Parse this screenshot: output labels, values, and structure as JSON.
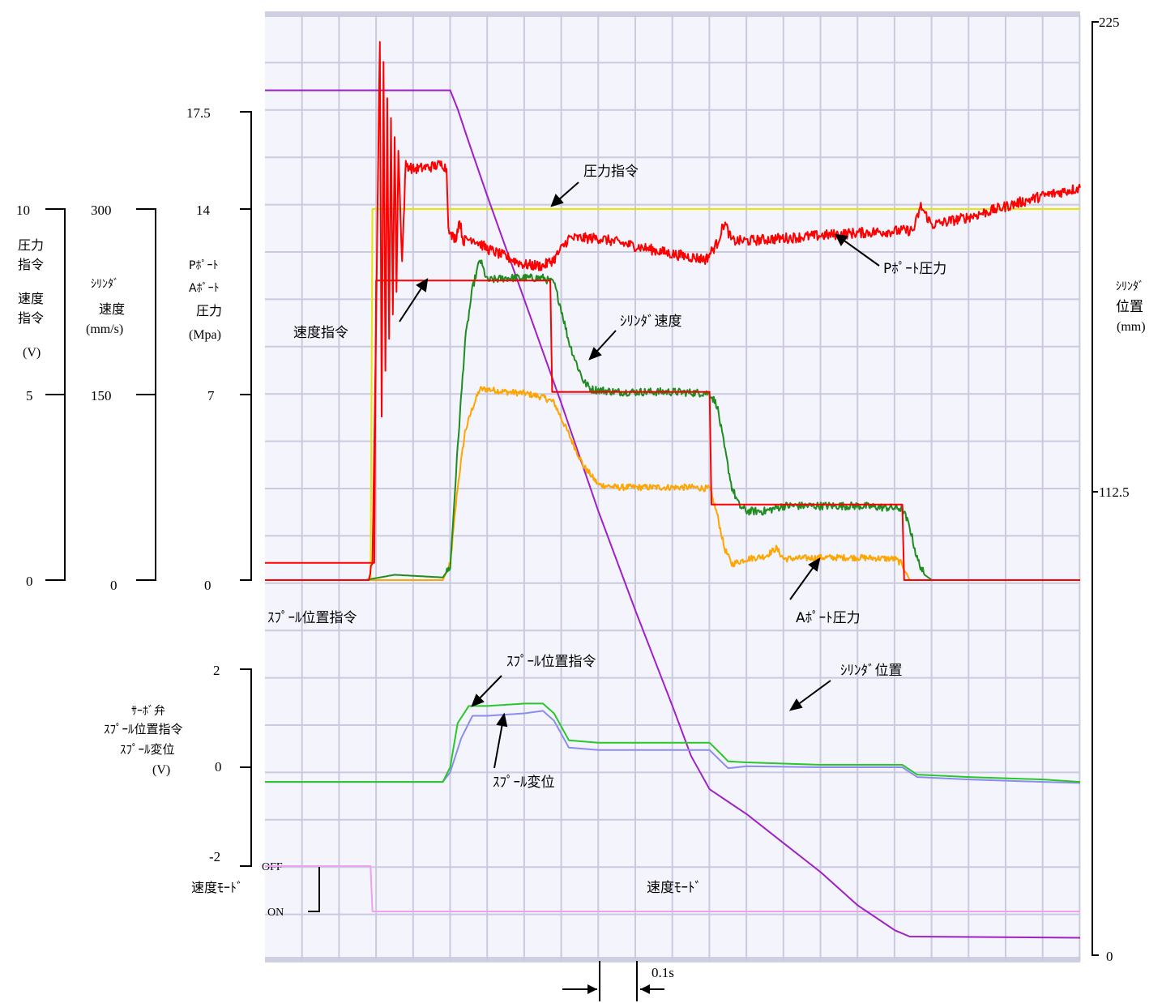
{
  "chart_data": {
    "type": "line",
    "time_scale_label": "0.1s",
    "right_axis": {
      "title_lines": [
        "ｼﾘﾝﾀﾞ",
        "位置",
        "(mm)"
      ],
      "ticks": [
        {
          "value": 225,
          "label": "225"
        },
        {
          "value": 112.5,
          "label": "112.5"
        },
        {
          "value": 0,
          "label": "0"
        }
      ]
    },
    "left_axes": [
      {
        "id": "cmd",
        "title_lines": [
          "圧力",
          "指令",
          "速度",
          "指令",
          "(V)"
        ],
        "ticks": [
          {
            "value": 10,
            "label": "10"
          },
          {
            "value": 5,
            "label": "5"
          },
          {
            "value": 0,
            "label": "0"
          }
        ]
      },
      {
        "id": "speed",
        "title_lines": [
          "ｼﾘﾝﾀﾞ",
          "速度",
          "(mm/s)"
        ],
        "ticks": [
          {
            "value": 300,
            "label": "300"
          },
          {
            "value": 150,
            "label": "150"
          },
          {
            "value": 0,
            "label": "0"
          }
        ]
      },
      {
        "id": "pressure",
        "title_lines": [
          "Pﾎﾟｰﾄ",
          "Aﾎﾟｰﾄ",
          "圧力",
          "(Mpa)"
        ],
        "ticks": [
          {
            "value": 17.5,
            "label": "17.5"
          },
          {
            "value": 14,
            "label": "14"
          },
          {
            "value": 7,
            "label": "7"
          },
          {
            "value": 0,
            "label": "0"
          }
        ]
      },
      {
        "id": "spool",
        "title_lines": [
          "ｻｰﾎﾞ弁",
          "ｽﾌﾟｰﾙ位置指令",
          "ｽﾌﾟｰﾙ変位",
          "(V)"
        ],
        "ticks": [
          {
            "value": 2,
            "label": "2"
          },
          {
            "value": 0,
            "label": "0"
          },
          {
            "value": -2,
            "label": "-2"
          }
        ]
      },
      {
        "id": "mode",
        "title_lines": [
          "速度ﾓｰﾄﾞ"
        ],
        "ticks": [
          {
            "value": 1,
            "label": "OFF"
          },
          {
            "value": 0,
            "label": "ON"
          }
        ]
      }
    ],
    "section_label": "ｽﾌﾟｰﾙ位置指令",
    "mode_center_label": "速度ﾓｰﾄﾞ",
    "series": [
      {
        "name": "圧力指令",
        "axis": "pressure",
        "color": "#e6e600",
        "noise": 0,
        "points": [
          [
            0,
            0
          ],
          [
            0.285,
            0
          ],
          [
            0.29,
            14
          ],
          [
            2.2,
            14
          ]
        ]
      },
      {
        "name": "速度指令",
        "axis": "pressure",
        "color": "#ff0000",
        "noise": 0,
        "points": [
          [
            0,
            0.65
          ],
          [
            0.295,
            0.65
          ],
          [
            0.3,
            11.3
          ],
          [
            0.77,
            11.3
          ],
          [
            0.775,
            7.1
          ],
          [
            1.2,
            7.1
          ],
          [
            1.205,
            2.85
          ],
          [
            1.72,
            2.85
          ],
          [
            1.725,
            0
          ],
          [
            2.2,
            0
          ]
        ]
      },
      {
        "name": "Pﾎﾟｰﾄ圧力",
        "axis": "pressure",
        "color": "#ff0000",
        "noise": 0.2,
        "points": [
          [
            0,
            0
          ],
          [
            0.28,
            0
          ],
          [
            0.29,
            0.6
          ],
          [
            0.3,
            10
          ],
          [
            0.31,
            20.5
          ],
          [
            0.315,
            6
          ],
          [
            0.32,
            19.5
          ],
          [
            0.325,
            8
          ],
          [
            0.33,
            18
          ],
          [
            0.335,
            9
          ],
          [
            0.34,
            17.5
          ],
          [
            0.345,
            10
          ],
          [
            0.35,
            16.8
          ],
          [
            0.355,
            11
          ],
          [
            0.36,
            16.2
          ],
          [
            0.37,
            12
          ],
          [
            0.38,
            15.7
          ],
          [
            0.4,
            15.5
          ],
          [
            0.45,
            15.6
          ],
          [
            0.48,
            15.7
          ],
          [
            0.49,
            15.5
          ],
          [
            0.495,
            13.5
          ],
          [
            0.5,
            13
          ],
          [
            0.515,
            12.9
          ],
          [
            0.525,
            13.6
          ],
          [
            0.535,
            12.8
          ],
          [
            0.56,
            12.9
          ],
          [
            0.6,
            12.5
          ],
          [
            0.65,
            12.2
          ],
          [
            0.7,
            11.9
          ],
          [
            0.75,
            11.85
          ],
          [
            0.78,
            12.1
          ],
          [
            0.82,
            12.9
          ],
          [
            0.9,
            12.9
          ],
          [
            1.0,
            12.6
          ],
          [
            1.1,
            12.3
          ],
          [
            1.19,
            12.1
          ],
          [
            1.22,
            12.7
          ],
          [
            1.24,
            13.5
          ],
          [
            1.26,
            12.8
          ],
          [
            1.3,
            12.8
          ],
          [
            1.4,
            12.9
          ],
          [
            1.5,
            13
          ],
          [
            1.6,
            13.1
          ],
          [
            1.75,
            13.2
          ],
          [
            1.77,
            14.1
          ],
          [
            1.8,
            13.4
          ],
          [
            1.9,
            13.7
          ],
          [
            2.0,
            14.1
          ],
          [
            2.1,
            14.5
          ],
          [
            2.2,
            14.8
          ]
        ]
      },
      {
        "name": "ｼﾘﾝﾀﾞ速度",
        "axis": "pressure",
        "color": "#1e8c1e",
        "noise": 0.15,
        "points": [
          [
            0,
            0
          ],
          [
            0.27,
            0
          ],
          [
            0.35,
            0.2
          ],
          [
            0.48,
            0.1
          ],
          [
            0.5,
            0.5
          ],
          [
            0.52,
            5
          ],
          [
            0.54,
            9
          ],
          [
            0.56,
            11
          ],
          [
            0.58,
            12.1
          ],
          [
            0.6,
            11.3
          ],
          [
            0.65,
            11.4
          ],
          [
            0.7,
            11.4
          ],
          [
            0.75,
            11.4
          ],
          [
            0.78,
            11.2
          ],
          [
            0.8,
            10.2
          ],
          [
            0.82,
            9
          ],
          [
            0.84,
            8.2
          ],
          [
            0.86,
            7.5
          ],
          [
            0.88,
            7.2
          ],
          [
            0.95,
            7.1
          ],
          [
            1.1,
            7.1
          ],
          [
            1.2,
            7.05
          ],
          [
            1.22,
            6.6
          ],
          [
            1.24,
            5
          ],
          [
            1.26,
            3.5
          ],
          [
            1.28,
            2.8
          ],
          [
            1.3,
            2.6
          ],
          [
            1.35,
            2.6
          ],
          [
            1.4,
            2.8
          ],
          [
            1.5,
            2.8
          ],
          [
            1.6,
            2.8
          ],
          [
            1.72,
            2.7
          ],
          [
            1.74,
            2
          ],
          [
            1.76,
            0.8
          ],
          [
            1.78,
            0.2
          ],
          [
            1.8,
            0
          ],
          [
            2.2,
            0
          ]
        ]
      },
      {
        "name": "Aﾎﾟｰﾄ圧力",
        "axis": "pressure",
        "color": "#ffa500",
        "noise": 0.12,
        "points": [
          [
            0,
            0
          ],
          [
            0.48,
            0
          ],
          [
            0.5,
            0.6
          ],
          [
            0.52,
            3.5
          ],
          [
            0.54,
            5.6
          ],
          [
            0.56,
            6.5
          ],
          [
            0.58,
            7.2
          ],
          [
            0.6,
            7.2
          ],
          [
            0.65,
            7.1
          ],
          [
            0.7,
            7.05
          ],
          [
            0.75,
            6.9
          ],
          [
            0.78,
            6.7
          ],
          [
            0.82,
            5.5
          ],
          [
            0.86,
            4.3
          ],
          [
            0.9,
            3.6
          ],
          [
            0.95,
            3.5
          ],
          [
            1.05,
            3.5
          ],
          [
            1.15,
            3.5
          ],
          [
            1.2,
            3.45
          ],
          [
            1.22,
            2.5
          ],
          [
            1.24,
            1.2
          ],
          [
            1.26,
            0.6
          ],
          [
            1.3,
            0.8
          ],
          [
            1.35,
            0.9
          ],
          [
            1.38,
            1.2
          ],
          [
            1.4,
            0.8
          ],
          [
            1.5,
            0.85
          ],
          [
            1.6,
            0.85
          ],
          [
            1.7,
            0.8
          ],
          [
            1.72,
            0.6
          ],
          [
            1.74,
            0
          ],
          [
            2.2,
            0
          ]
        ]
      },
      {
        "name": "ｼﾘﾝﾀﾞ位置",
        "axis": "right",
        "color": "#a020c8",
        "noise": 0,
        "points": [
          [
            0,
            208.5
          ],
          [
            0.5,
            208.5
          ],
          [
            0.52,
            204
          ],
          [
            0.55,
            196
          ],
          [
            0.6,
            183
          ],
          [
            0.7,
            158
          ],
          [
            0.8,
            133
          ],
          [
            0.9,
            107
          ],
          [
            1.0,
            83
          ],
          [
            1.1,
            60
          ],
          [
            1.15,
            48
          ],
          [
            1.2,
            40
          ],
          [
            1.3,
            34
          ],
          [
            1.4,
            27
          ],
          [
            1.5,
            20
          ],
          [
            1.6,
            12
          ],
          [
            1.7,
            6
          ],
          [
            1.74,
            4.5
          ],
          [
            2.2,
            4.2
          ]
        ]
      },
      {
        "name": "ｽﾌﾟｰﾙ位置指令",
        "axis": "spool",
        "color": "#28c828",
        "noise": 0,
        "points": [
          [
            0,
            -0.3
          ],
          [
            0.48,
            -0.3
          ],
          [
            0.5,
            0
          ],
          [
            0.52,
            0.9
          ],
          [
            0.55,
            1.25
          ],
          [
            0.6,
            1.25
          ],
          [
            0.7,
            1.3
          ],
          [
            0.75,
            1.3
          ],
          [
            0.78,
            1.1
          ],
          [
            0.82,
            0.55
          ],
          [
            0.9,
            0.5
          ],
          [
            1.0,
            0.5
          ],
          [
            1.2,
            0.5
          ],
          [
            1.22,
            0.35
          ],
          [
            1.25,
            0.12
          ],
          [
            1.3,
            0.1
          ],
          [
            1.5,
            0.05
          ],
          [
            1.72,
            0.05
          ],
          [
            1.76,
            -0.15
          ],
          [
            1.9,
            -0.2
          ],
          [
            2.1,
            -0.25
          ],
          [
            2.2,
            -0.3
          ]
        ]
      },
      {
        "name": "ｽﾌﾟｰﾙ変位",
        "axis": "spool",
        "color": "#8c8cf0",
        "noise": 0,
        "points": [
          [
            0,
            -0.3
          ],
          [
            0.48,
            -0.3
          ],
          [
            0.5,
            -0.1
          ],
          [
            0.53,
            0.6
          ],
          [
            0.56,
            1.05
          ],
          [
            0.6,
            1.05
          ],
          [
            0.7,
            1.1
          ],
          [
            0.75,
            1.15
          ],
          [
            0.78,
            0.95
          ],
          [
            0.82,
            0.4
          ],
          [
            0.9,
            0.35
          ],
          [
            1.0,
            0.35
          ],
          [
            1.2,
            0.35
          ],
          [
            1.22,
            0.2
          ],
          [
            1.25,
            -0.02
          ],
          [
            1.3,
            0.02
          ],
          [
            1.5,
            0
          ],
          [
            1.72,
            0
          ],
          [
            1.76,
            -0.2
          ],
          [
            1.9,
            -0.25
          ],
          [
            2.1,
            -0.3
          ],
          [
            2.2,
            -0.32
          ]
        ]
      },
      {
        "name": "速度ﾓｰﾄﾞ",
        "axis": "mode",
        "color": "#f0a0f0",
        "noise": 0,
        "points": [
          [
            0,
            1
          ],
          [
            0.285,
            1
          ],
          [
            0.29,
            0
          ],
          [
            2.2,
            0
          ]
        ]
      }
    ],
    "annotations": [
      {
        "text": "圧力指令"
      },
      {
        "text": "Pﾎﾟｰﾄ圧力"
      },
      {
        "text": "速度指令"
      },
      {
        "text": "ｼﾘﾝﾀﾞ速度"
      },
      {
        "text": "Aﾎﾟｰﾄ圧力"
      },
      {
        "text": "ｽﾌﾟｰﾙ位置指令"
      },
      {
        "text": "ｽﾌﾟｰﾙ変位"
      },
      {
        "text": "ｼﾘﾝﾀﾞ位置"
      }
    ]
  }
}
